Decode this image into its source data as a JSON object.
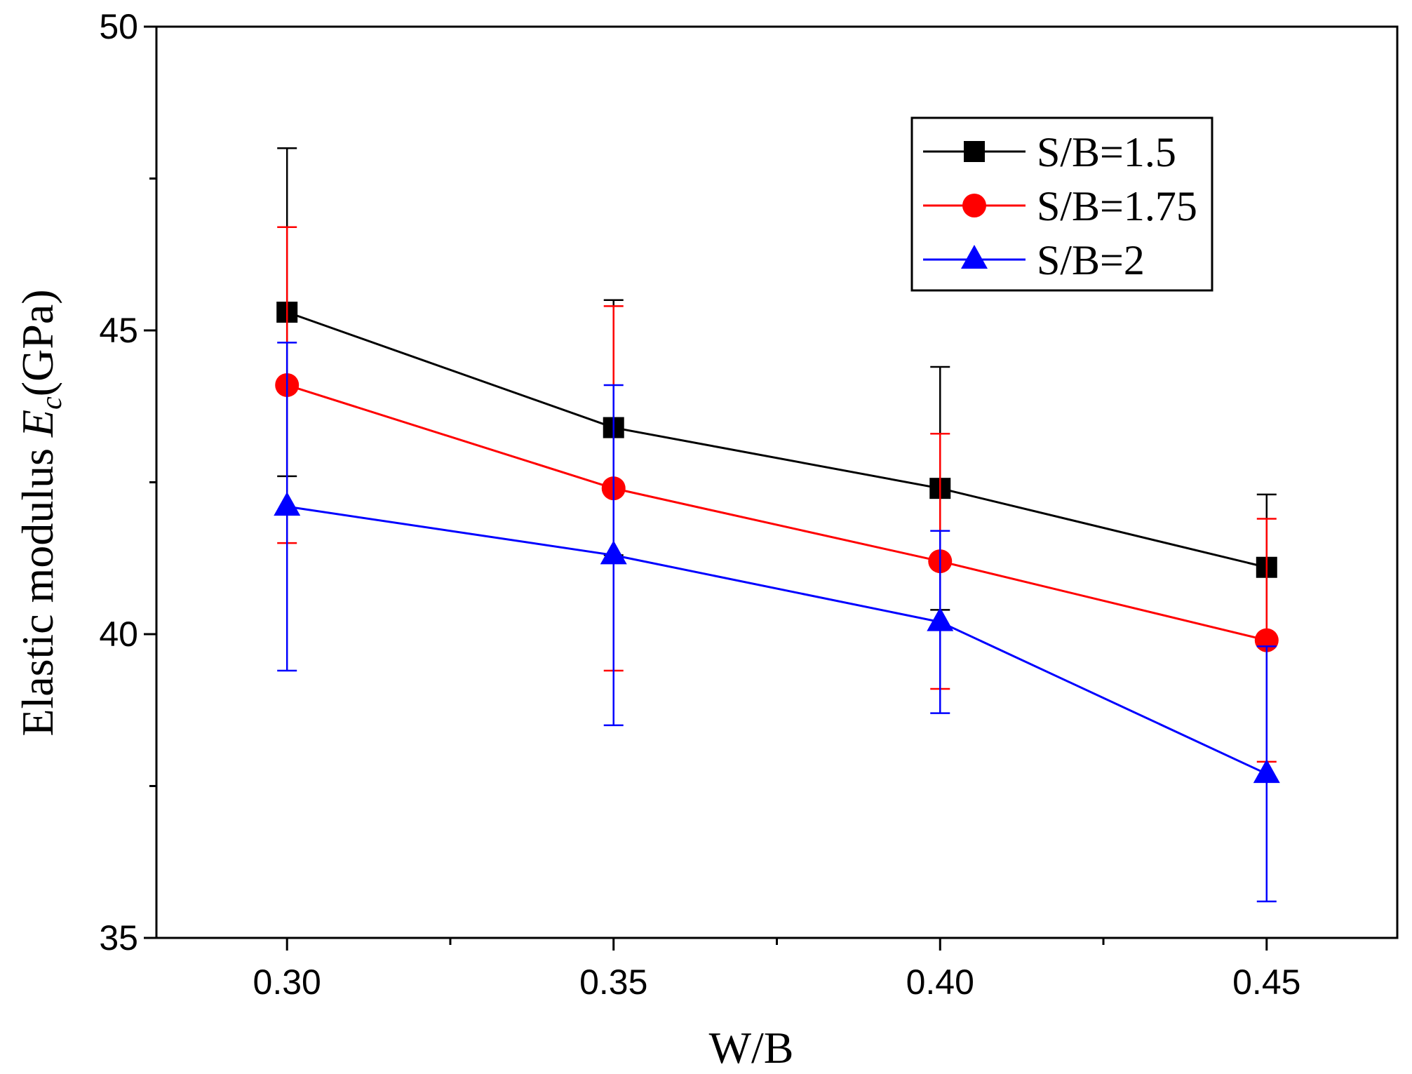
{
  "chart_data": {
    "type": "line",
    "xlabel": "W/B",
    "ylabel": {
      "prefix": "Elastic modulus ",
      "symbol": "E",
      "subscript": "c",
      "unit": "(GPa)"
    },
    "xlim": [
      0.28,
      0.47
    ],
    "ylim": [
      35,
      50
    ],
    "x": [
      0.3,
      0.35,
      0.4,
      0.45
    ],
    "x_tick_labels": [
      "0.30",
      "0.35",
      "0.40",
      "0.45"
    ],
    "y_tick_values": [
      35,
      40,
      45,
      50
    ],
    "y_tick_labels": [
      "35",
      "40",
      "45",
      "50"
    ],
    "legend_position": "top-right",
    "series": [
      {
        "name": "S/B=1.5",
        "color": "#000000",
        "marker": "square",
        "values": [
          45.3,
          43.4,
          42.4,
          41.1
        ],
        "errors": [
          2.7,
          2.1,
          2.0,
          1.2
        ]
      },
      {
        "name": "S/B=1.75",
        "color": "#ff0000",
        "marker": "circle",
        "values": [
          44.1,
          42.4,
          41.2,
          39.9
        ],
        "errors": [
          2.6,
          3.0,
          2.1,
          2.0
        ]
      },
      {
        "name": "S/B=2",
        "color": "#0000ff",
        "marker": "triangle",
        "values": [
          42.1,
          41.3,
          40.2,
          37.7
        ],
        "errors": [
          2.7,
          2.8,
          1.5,
          2.1
        ]
      }
    ]
  }
}
